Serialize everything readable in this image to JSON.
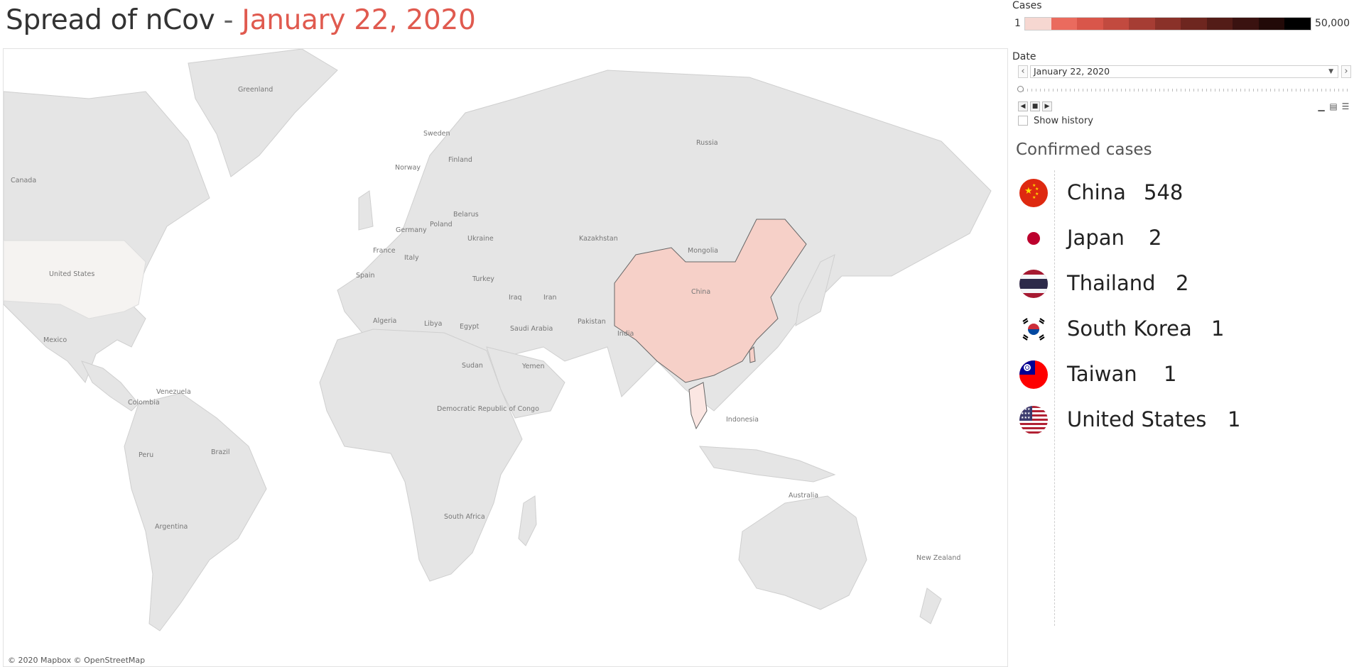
{
  "header": {
    "title": "Spread of nCov",
    "separator": " - ",
    "date": "January 22, 2020"
  },
  "legend": {
    "title": "Cases",
    "min_label": "1",
    "max_label": "50,000",
    "colors": [
      "#f6d7d1",
      "#ea6b5e",
      "#d9564a",
      "#c24a3f",
      "#a63d34",
      "#8a3129",
      "#6e261f",
      "#531c17",
      "#3a1210",
      "#220a08",
      "#000000"
    ]
  },
  "date_filter": {
    "title": "Date",
    "selected": "January 22, 2020",
    "show_history_label": "Show history"
  },
  "map": {
    "attribution": "© 2020 Mapbox © OpenStreetMap",
    "labels": [
      "Greenland",
      "Canada",
      "United States",
      "Mexico",
      "Venezuela",
      "Colombia",
      "Brazil",
      "Peru",
      "Argentina",
      "Russia",
      "Sweden",
      "Finland",
      "Norway",
      "Belarus",
      "Poland",
      "Germany",
      "Ukraine",
      "France",
      "Italy",
      "Spain",
      "Turkey",
      "Kazakhstan",
      "Mongolia",
      "Iraq",
      "Iran",
      "Saudi Arabia",
      "Yemen",
      "Egypt",
      "Libya",
      "Algeria",
      "Sudan",
      "Democratic Republic of Congo",
      "South Africa",
      "Pakistan",
      "India",
      "Indonesia",
      "Australia",
      "New Zealand",
      "China"
    ],
    "highlight_color": "#f6d0c8",
    "land_color": "#e5e5e5"
  },
  "cases": {
    "title": "Confirmed cases",
    "rows": [
      {
        "country": "China",
        "count": "548",
        "flag": "china-flag-icon"
      },
      {
        "country": "Japan",
        "count": "2",
        "flag": "japan-flag-icon"
      },
      {
        "country": "Thailand",
        "count": "2",
        "flag": "thailand-flag-icon"
      },
      {
        "country": "South Korea",
        "count": "1",
        "flag": "south-korea-flag-icon"
      },
      {
        "country": "Taiwan",
        "count": "1",
        "flag": "taiwan-flag-icon"
      },
      {
        "country": "United States",
        "count": "1",
        "flag": "united-states-flag-icon"
      }
    ]
  }
}
